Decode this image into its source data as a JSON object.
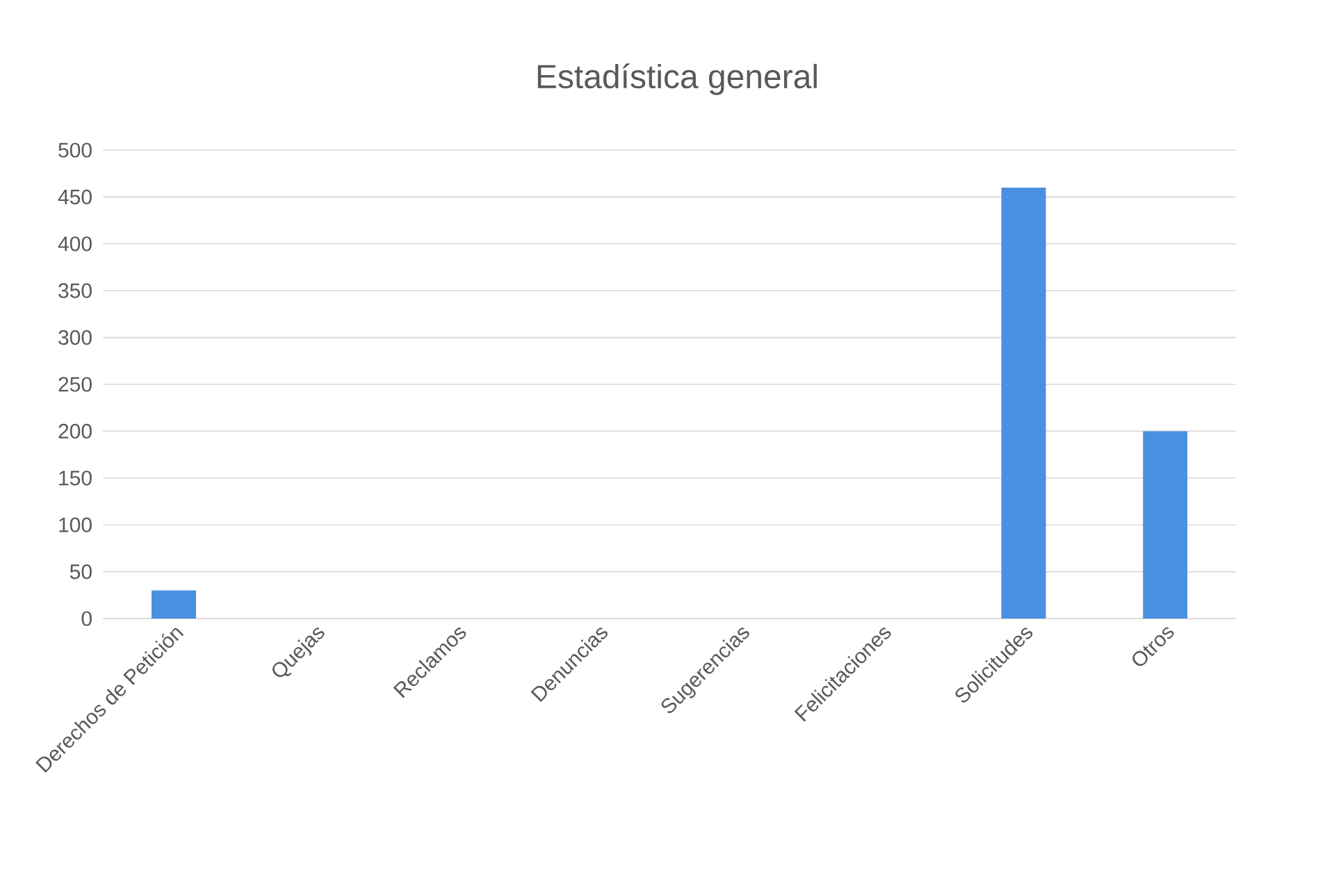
{
  "chart_data": {
    "type": "bar",
    "title": "Estadística general",
    "categories": [
      "Derechos de Petición",
      "Quejas",
      "Reclamos",
      "Denuncias",
      "Sugerencias",
      "Felicitaciones",
      "Solicitudes",
      "Otros"
    ],
    "values": [
      30,
      0,
      0,
      0,
      0,
      0,
      460,
      200
    ],
    "color": "#4a90e2",
    "ylim": [
      0,
      500
    ],
    "yticks": [
      0,
      50,
      100,
      150,
      200,
      250,
      300,
      350,
      400,
      450,
      500
    ],
    "grid": "y"
  }
}
